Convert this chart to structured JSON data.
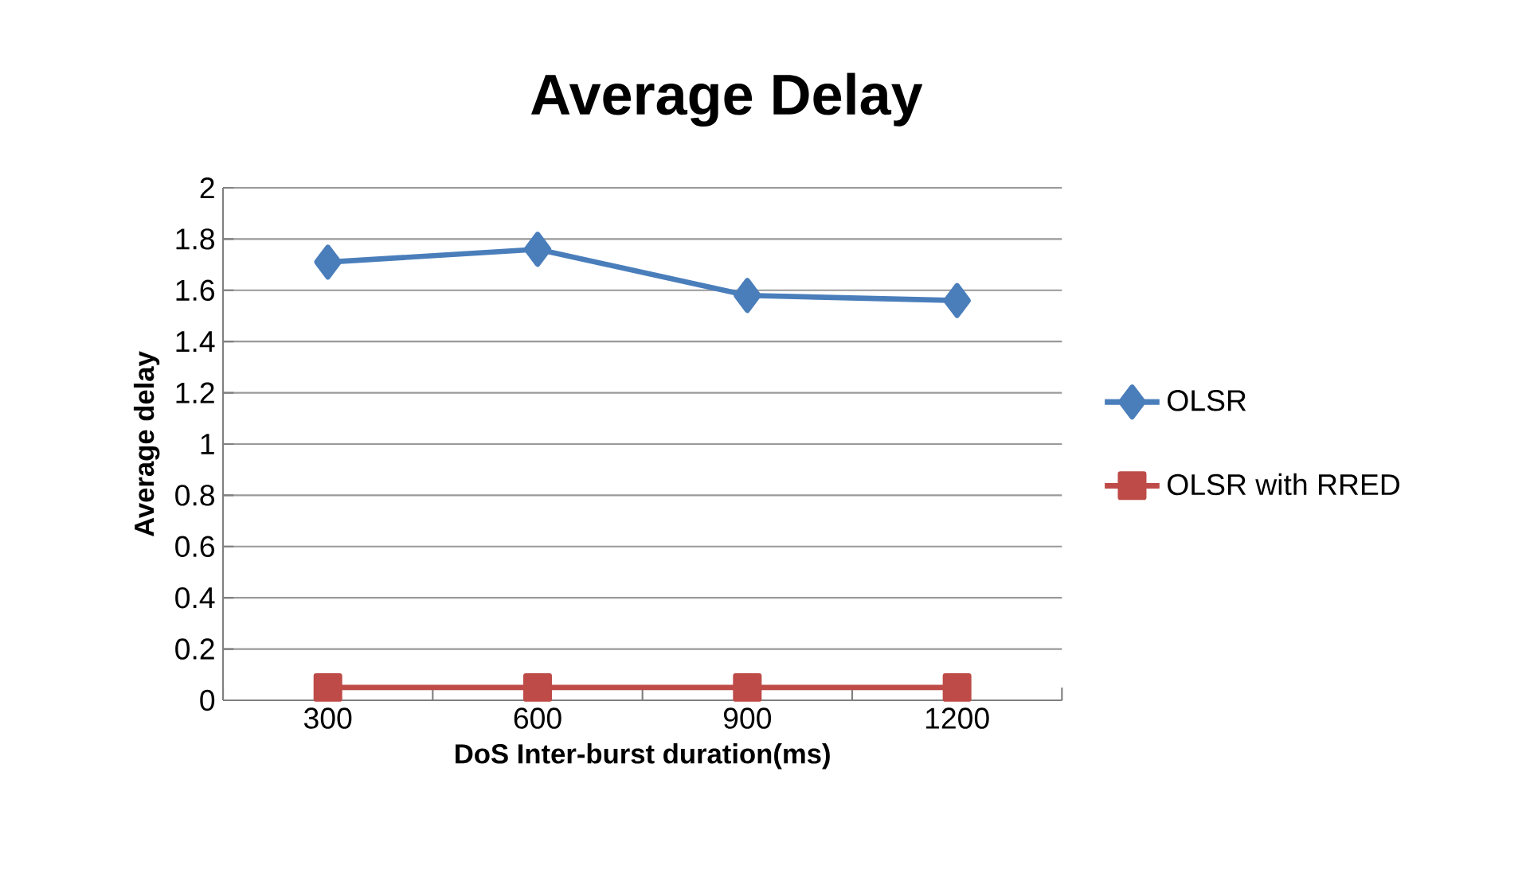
{
  "chart_data": {
    "type": "line",
    "title": "Average Delay",
    "xlabel": "DoS Inter-burst duration(ms)",
    "ylabel": "Average delay",
    "categories": [
      "300",
      "600",
      "900",
      "1200"
    ],
    "series": [
      {
        "name": "OLSR",
        "color": "#4a7ebb",
        "marker": "diamond",
        "values": [
          1.71,
          1.76,
          1.58,
          1.56
        ]
      },
      {
        "name": "OLSR with RRED",
        "color": "#be4b48",
        "marker": "square",
        "values": [
          0.05,
          0.05,
          0.05,
          0.05
        ]
      }
    ],
    "ylim": [
      0,
      2
    ],
    "yticks": [
      0,
      0.2,
      0.4,
      0.6,
      0.8,
      1,
      1.2,
      1.4,
      1.6,
      1.8,
      2
    ],
    "grid": "y",
    "legend": "right"
  }
}
